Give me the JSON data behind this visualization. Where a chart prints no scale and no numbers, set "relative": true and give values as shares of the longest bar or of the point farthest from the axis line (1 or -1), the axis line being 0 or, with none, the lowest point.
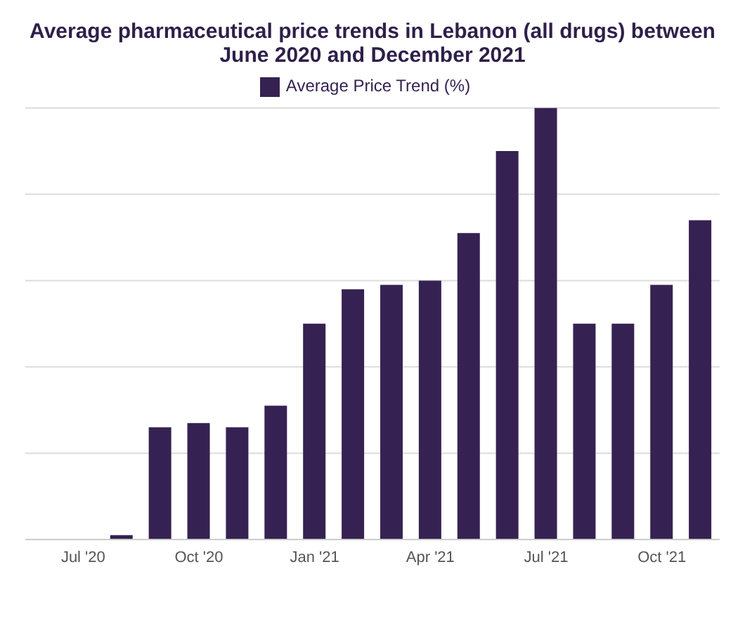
{
  "chart_data": {
    "type": "bar",
    "title": "Average pharmaceutical price trends in Lebanon (all drugs) between June 2020 and December 2021",
    "categories": [
      null,
      "Jul '20",
      null,
      null,
      "Oct '20",
      null,
      null,
      "Jan '21",
      null,
      null,
      "Apr '21",
      null,
      null,
      "Jul '21",
      null,
      null,
      "Oct '21",
      null
    ],
    "series": [
      {
        "name": "Average Price Trend (%)",
        "color": "#352252",
        "values": [
          0,
          0,
          0.01,
          0.26,
          0.27,
          0.26,
          0.31,
          0.5,
          0.58,
          0.59,
          0.6,
          0.71,
          0.9,
          1,
          0.5,
          0.5,
          0.59,
          0.74
        ]
      }
    ],
    "relative": true,
    "grid": "y",
    "legend": "top"
  }
}
